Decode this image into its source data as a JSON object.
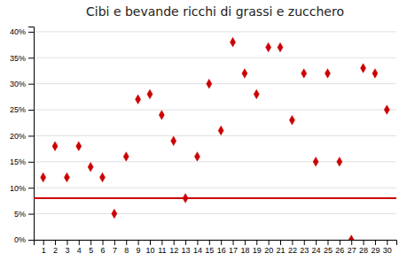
{
  "chart_data": {
    "type": "scatter",
    "title": "Cibi e bevande ricchi di grassi e zucchero",
    "x": [
      1,
      2,
      3,
      4,
      5,
      6,
      7,
      8,
      9,
      10,
      11,
      12,
      13,
      14,
      15,
      16,
      17,
      18,
      19,
      20,
      21,
      22,
      23,
      24,
      25,
      26,
      27,
      28,
      29,
      30
    ],
    "values": [
      0.12,
      0.18,
      0.12,
      0.18,
      0.14,
      0.12,
      0.05,
      0.16,
      0.27,
      0.28,
      0.24,
      0.19,
      0.08,
      0.16,
      0.3,
      0.21,
      0.38,
      0.32,
      0.28,
      0.37,
      0.37,
      0.23,
      0.32,
      0.15,
      0.32,
      0.15,
      0.0,
      0.33,
      0.32,
      0.25
    ],
    "color": "#cc0000",
    "marker": "diamond",
    "reference_line": 0.08,
    "xlim": [
      0.2,
      30.8
    ],
    "ylim": [
      0.0,
      0.41
    ],
    "xticks": [
      1,
      2,
      3,
      4,
      5,
      6,
      7,
      8,
      9,
      10,
      11,
      12,
      13,
      14,
      15,
      16,
      17,
      18,
      19,
      20,
      21,
      22,
      23,
      24,
      25,
      26,
      27,
      28,
      29,
      30
    ],
    "yticks": [
      {
        "value": 0.0,
        "label": "0%"
      },
      {
        "value": 0.05,
        "label": "5%"
      },
      {
        "value": 0.1,
        "label": "10%"
      },
      {
        "value": 0.15,
        "label": "15%"
      },
      {
        "value": 0.2,
        "label": "20%"
      },
      {
        "value": 0.25,
        "label": "25%"
      },
      {
        "value": 0.3,
        "label": "30%"
      },
      {
        "value": 0.35,
        "label": "35%"
      },
      {
        "value": 0.4,
        "label": "40%"
      }
    ],
    "grid": true
  }
}
